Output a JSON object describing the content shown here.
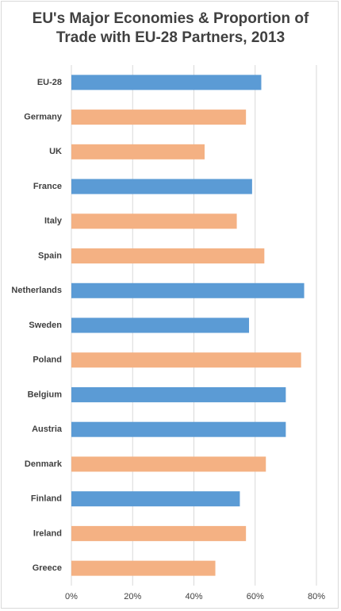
{
  "chart_data": {
    "type": "barh",
    "title": "EU's Major Economies & Proportion of Trade with EU-28 Partners, 2013",
    "categories": [
      "EU-28",
      "Germany",
      "UK",
      "France",
      "Italy",
      "Spain",
      "Netherlands",
      "Sweden",
      "Poland",
      "Belgium",
      "Austria",
      "Denmark",
      "Finland",
      "Ireland",
      "Greece"
    ],
    "values": [
      62,
      57,
      43.5,
      59,
      54,
      63,
      76,
      58,
      75,
      70,
      70,
      63.5,
      55,
      57,
      47
    ],
    "colors": [
      "#5b9bd5",
      "#f4b183",
      "#f4b183",
      "#5b9bd5",
      "#f4b183",
      "#f4b183",
      "#5b9bd5",
      "#5b9bd5",
      "#f4b183",
      "#5b9bd5",
      "#5b9bd5",
      "#f4b183",
      "#5b9bd5",
      "#f4b183",
      "#f4b183"
    ],
    "xlim": [
      0,
      80
    ],
    "xticks": [
      {
        "value": 0,
        "label": "0%"
      },
      {
        "value": 20,
        "label": "20%"
      },
      {
        "value": 40,
        "label": "40%"
      },
      {
        "value": 60,
        "label": "60%"
      },
      {
        "value": 80,
        "label": "80%"
      }
    ],
    "grid": true
  }
}
